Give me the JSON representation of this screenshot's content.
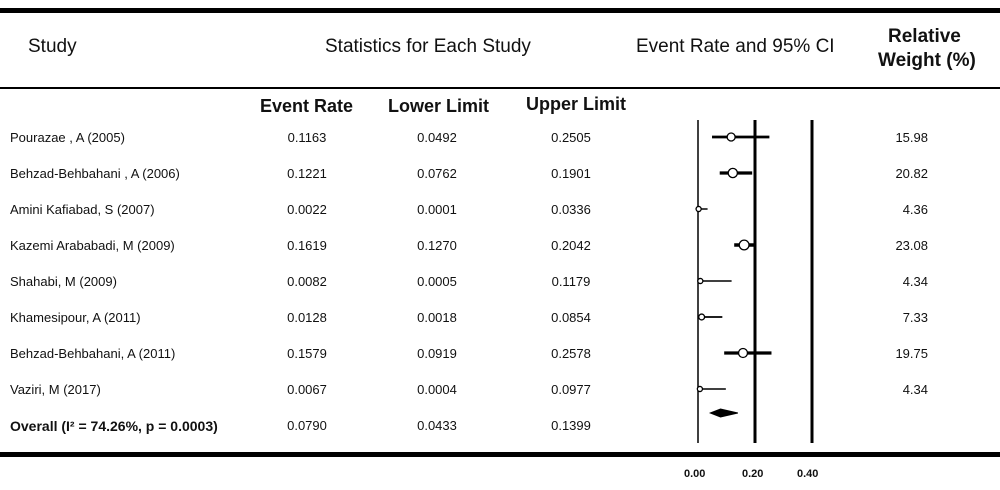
{
  "header": {
    "study": "Study",
    "stats": "Statistics for Each Study",
    "forest": "Event Rate and 95% CI",
    "weight_line1": "Relative",
    "weight_line2": "Weight (%)"
  },
  "subheader": {
    "event_rate": "Event Rate",
    "lower": "Lower Limit",
    "upper": "Upper Limit"
  },
  "studies": [
    {
      "name": "Pourazae , A  (2005)",
      "rate": "0.1163",
      "lower": "0.0492",
      "upper": "0.2505",
      "weight": "15.98"
    },
    {
      "name": "Behzad-Behbahani , A  (2006)",
      "rate": "0.1221",
      "lower": "0.0762",
      "upper": "0.1901",
      "weight": "20.82"
    },
    {
      "name": "Amini Kafiabad, S  (2007)",
      "rate": "0.0022",
      "lower": "0.0001",
      "upper": "0.0336",
      "weight": "4.36"
    },
    {
      "name": "Kazemi Arababadi, M  (2009)",
      "rate": "0.1619",
      "lower": "0.1270",
      "upper": "0.2042",
      "weight": "23.08"
    },
    {
      "name": "Shahabi, M  (2009)",
      "rate": "0.0082",
      "lower": "0.0005",
      "upper": "0.1179",
      "weight": "4.34"
    },
    {
      "name": "Khamesipour, A  (2011)",
      "rate": "0.0128",
      "lower": "0.0018",
      "upper": "0.0854",
      "weight": "7.33"
    },
    {
      "name": "Behzad-Behbahani, A  (2011)",
      "rate": "0.1579",
      "lower": "0.0919",
      "upper": "0.2578",
      "weight": "19.75"
    },
    {
      "name": "Vaziri, M  (2017)",
      "rate": "0.0067",
      "lower": "0.0004",
      "upper": "0.0977",
      "weight": "4.34"
    }
  ],
  "overall": {
    "name": "Overall (I² = 74.26%, p = 0.0003)",
    "rate": "0.0790",
    "lower": "0.0433",
    "upper": "0.1399"
  },
  "chart_data": {
    "type": "forest",
    "title": "Event Rate and 95% CI",
    "x_ticks": [
      "0.00",
      "0.20",
      "0.40"
    ],
    "xlim": [
      0.0,
      0.4
    ],
    "reference_lines": [
      0.0,
      0.2,
      0.4
    ],
    "series": [
      {
        "study": "Pourazae , A  (2005)",
        "estimate": 0.1163,
        "ci": [
          0.0492,
          0.2505
        ],
        "weight": 15.98
      },
      {
        "study": "Behzad-Behbahani , A  (2006)",
        "estimate": 0.1221,
        "ci": [
          0.0762,
          0.1901
        ],
        "weight": 20.82
      },
      {
        "study": "Amini Kafiabad, S  (2007)",
        "estimate": 0.0022,
        "ci": [
          0.0001,
          0.0336
        ],
        "weight": 4.36
      },
      {
        "study": "Kazemi Arababadi, M  (2009)",
        "estimate": 0.1619,
        "ci": [
          0.127,
          0.2042
        ],
        "weight": 23.08
      },
      {
        "study": "Shahabi, M  (2009)",
        "estimate": 0.0082,
        "ci": [
          0.0005,
          0.1179
        ],
        "weight": 4.34
      },
      {
        "study": "Khamesipour, A  (2011)",
        "estimate": 0.0128,
        "ci": [
          0.0018,
          0.0854
        ],
        "weight": 7.33
      },
      {
        "study": "Behzad-Behbahani, A  (2011)",
        "estimate": 0.1579,
        "ci": [
          0.0919,
          0.2578
        ],
        "weight": 19.75
      },
      {
        "study": "Vaziri, M  (2017)",
        "estimate": 0.0067,
        "ci": [
          0.0004,
          0.0977
        ],
        "weight": 4.34
      }
    ],
    "overall": {
      "estimate": 0.079,
      "ci": [
        0.0433,
        0.1399
      ]
    }
  }
}
